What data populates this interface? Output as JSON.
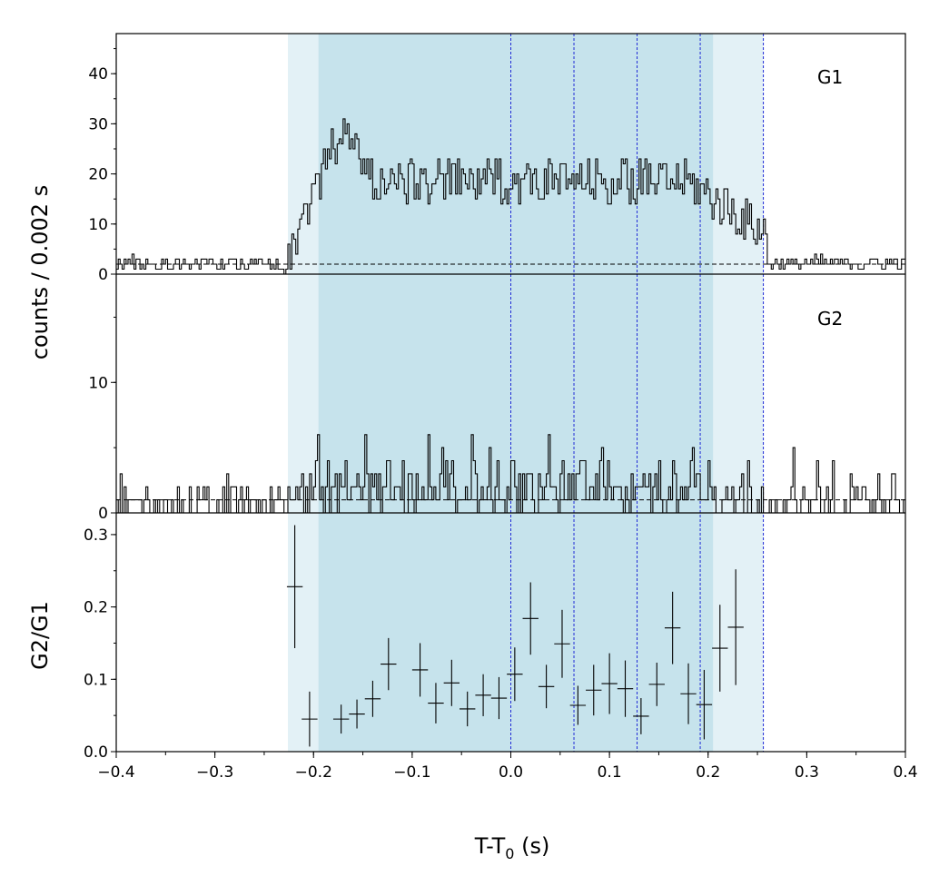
{
  "chart_data": [
    {
      "panel": "G1",
      "type": "line",
      "label": "G1",
      "ylim": [
        0,
        48
      ],
      "yticks": [
        0,
        10,
        20,
        30,
        40
      ],
      "ylabel": "counts /  0.002 s",
      "background_level": 2.0,
      "bin_width": 0.002,
      "x_start": -0.4,
      "shape": {
        "pre": 2.2,
        "rise_start": -0.23,
        "rise_end": -0.17,
        "peak": 30,
        "plateau": 18.5,
        "decay_start": 0.18,
        "tail_level": 8,
        "tail_end": 0.26,
        "post": 2.2,
        "noise": 4.5,
        "pre_noise": 1.4
      }
    },
    {
      "panel": "G2",
      "type": "line",
      "label": "G2",
      "ylim": [
        0,
        18.3
      ],
      "yticks": [
        0,
        10
      ],
      "background_level": 1.0,
      "bin_width": 0.002,
      "x_start": -0.4,
      "shape": {
        "pre": 0.9,
        "burst": 2.0,
        "post": 0.9,
        "max": 6
      }
    },
    {
      "panel": "ratio",
      "type": "scatter",
      "ylabel": "G2/G1",
      "xlabel": "T-T",
      "xlabel_sub": "0",
      "xlabel_unit": " (s)",
      "xlim": [
        -0.4,
        0.4
      ],
      "ylim": [
        0,
        0.33
      ],
      "xticks": [
        -0.4,
        -0.3,
        -0.2,
        -0.1,
        0.0,
        0.1,
        0.2,
        0.3,
        0.4
      ],
      "xtick_labels": [
        "−0.4",
        "−0.3",
        "−0.2",
        "−0.1",
        "0.0",
        "0.1",
        "0.2",
        "0.3",
        "0.4"
      ],
      "yticks": [
        0.0,
        0.1,
        0.2,
        0.3
      ],
      "ytick_labels": [
        "0.0",
        "0.1",
        "0.2",
        "0.3"
      ],
      "points": [
        {
          "x": -0.219,
          "y": 0.228,
          "xerr": 0.008,
          "yerr": 0.085
        },
        {
          "x": -0.204,
          "y": 0.045,
          "xerr": 0.008,
          "yerr": 0.038
        },
        {
          "x": -0.172,
          "y": 0.045,
          "xerr": 0.008,
          "yerr": 0.02
        },
        {
          "x": -0.156,
          "y": 0.052,
          "xerr": 0.008,
          "yerr": 0.02
        },
        {
          "x": -0.14,
          "y": 0.073,
          "xerr": 0.008,
          "yerr": 0.025
        },
        {
          "x": -0.124,
          "y": 0.121,
          "xerr": 0.008,
          "yerr": 0.036
        },
        {
          "x": -0.092,
          "y": 0.113,
          "xerr": 0.008,
          "yerr": 0.037
        },
        {
          "x": -0.076,
          "y": 0.067,
          "xerr": 0.008,
          "yerr": 0.028
        },
        {
          "x": -0.06,
          "y": 0.095,
          "xerr": 0.008,
          "yerr": 0.032
        },
        {
          "x": -0.044,
          "y": 0.059,
          "xerr": 0.008,
          "yerr": 0.024
        },
        {
          "x": -0.028,
          "y": 0.078,
          "xerr": 0.008,
          "yerr": 0.029
        },
        {
          "x": -0.012,
          "y": 0.074,
          "xerr": 0.008,
          "yerr": 0.029
        },
        {
          "x": 0.004,
          "y": 0.107,
          "xerr": 0.008,
          "yerr": 0.037
        },
        {
          "x": 0.02,
          "y": 0.184,
          "xerr": 0.008,
          "yerr": 0.05
        },
        {
          "x": 0.036,
          "y": 0.09,
          "xerr": 0.008,
          "yerr": 0.03
        },
        {
          "x": 0.052,
          "y": 0.149,
          "xerr": 0.008,
          "yerr": 0.047
        },
        {
          "x": 0.068,
          "y": 0.064,
          "xerr": 0.008,
          "yerr": 0.027
        },
        {
          "x": 0.084,
          "y": 0.085,
          "xerr": 0.008,
          "yerr": 0.035
        },
        {
          "x": 0.1,
          "y": 0.094,
          "xerr": 0.008,
          "yerr": 0.042
        },
        {
          "x": 0.116,
          "y": 0.087,
          "xerr": 0.008,
          "yerr": 0.039
        },
        {
          "x": 0.132,
          "y": 0.049,
          "xerr": 0.008,
          "yerr": 0.025
        },
        {
          "x": 0.148,
          "y": 0.093,
          "xerr": 0.008,
          "yerr": 0.03
        },
        {
          "x": 0.164,
          "y": 0.171,
          "xerr": 0.008,
          "yerr": 0.05
        },
        {
          "x": 0.18,
          "y": 0.08,
          "xerr": 0.008,
          "yerr": 0.042
        },
        {
          "x": 0.196,
          "y": 0.065,
          "xerr": 0.008,
          "yerr": 0.048
        },
        {
          "x": 0.212,
          "y": 0.143,
          "xerr": 0.008,
          "yerr": 0.06
        },
        {
          "x": 0.228,
          "y": 0.172,
          "xerr": 0.008,
          "yerr": 0.08
        }
      ]
    }
  ],
  "regions": {
    "light": {
      "from": -0.226,
      "to": 0.256,
      "color": "#e3f1f6"
    },
    "dark": {
      "from": -0.195,
      "to": 0.205,
      "color": "#c6e3ec"
    }
  },
  "vlines": {
    "values": [
      0.0,
      0.064,
      0.128,
      0.192,
      0.256
    ],
    "color": "#1f2ad6"
  },
  "colors": {
    "histogram": "#000000",
    "background_dashed": "#000000"
  }
}
